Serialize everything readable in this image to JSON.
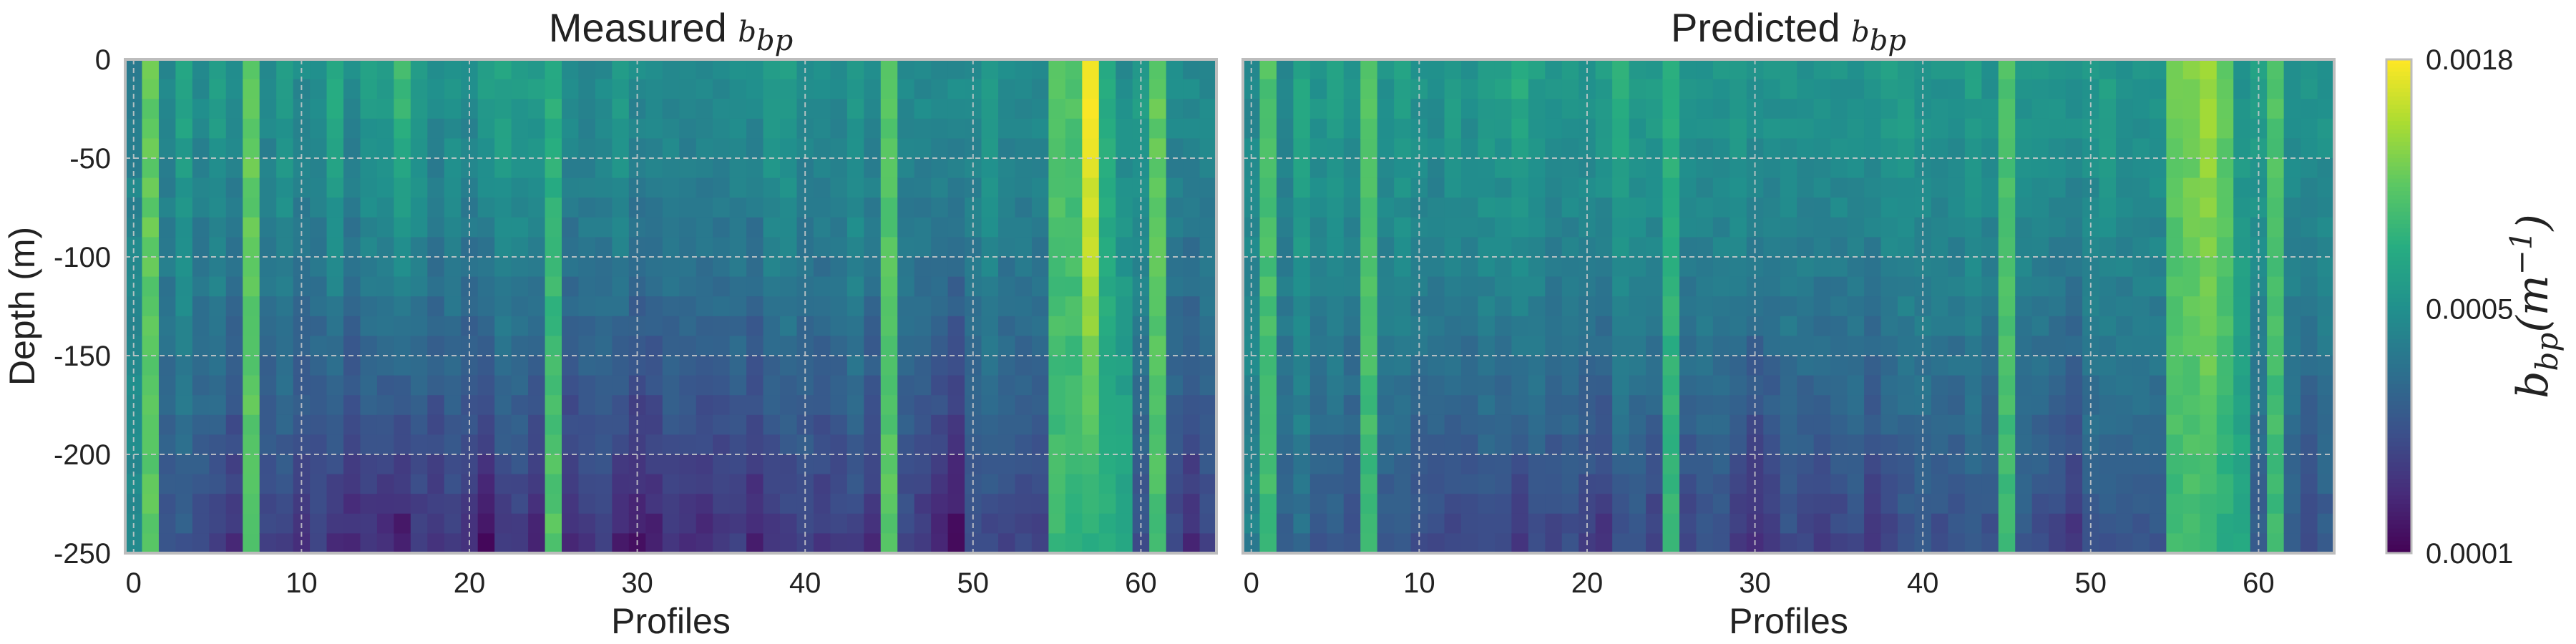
{
  "chart_data": {
    "type": "heatmap",
    "panels": [
      {
        "title": "Measured",
        "title_symbol": "b",
        "title_symbol_sub": "bp",
        "xlabel": "Profiles",
        "ylabel": "Depth (m)",
        "xlim": [
          -0.5,
          64.5
        ],
        "ylim": [
          -250,
          0
        ],
        "xticks": [
          "0",
          "10",
          "20",
          "30",
          "40",
          "50",
          "60"
        ],
        "yticks": [
          "0",
          "-50",
          "-100",
          "-150",
          "-200",
          "-250"
        ],
        "grid": true,
        "profiles": 65,
        "depth_bins": 25,
        "surface_values": [
          0.00036,
          0.0009,
          0.0004,
          0.00055,
          0.0004,
          0.0005,
          0.0004,
          0.0009,
          0.0004,
          0.0005,
          0.0004,
          0.0004,
          0.0006,
          0.0004,
          0.0005,
          0.0005,
          0.0007,
          0.0005,
          0.0004,
          0.00045,
          0.0004,
          0.0005,
          0.00055,
          0.0005,
          0.0005,
          0.0006,
          0.0004,
          0.0004,
          0.0004,
          0.0005,
          0.0004,
          0.0004,
          0.0004,
          0.0004,
          0.0004,
          0.0004,
          0.0004,
          0.0004,
          0.0005,
          0.0005,
          0.0004,
          0.0004,
          0.0004,
          0.0005,
          0.0004,
          0.0008,
          0.0004,
          0.0004,
          0.0004,
          0.0004,
          0.0004,
          0.0005,
          0.0004,
          0.0004,
          0.0004,
          0.0008,
          0.0008,
          0.0018,
          0.0006,
          0.0004,
          0.0005,
          0.0009,
          0.0004,
          0.0004,
          0.0004
        ],
        "bottom_values": [
          0.0004,
          0.00085,
          0.0002,
          0.00022,
          0.0002,
          0.00018,
          0.00015,
          0.00085,
          0.00018,
          0.00018,
          0.00016,
          0.00017,
          0.00015,
          0.00014,
          0.00015,
          0.00014,
          0.00012,
          0.00016,
          0.00015,
          0.00017,
          0.00015,
          0.00011,
          0.00016,
          0.00016,
          0.00013,
          0.00085,
          0.00014,
          0.00016,
          0.00017,
          0.00013,
          0.00012,
          0.00013,
          0.00016,
          0.00015,
          0.00014,
          0.00015,
          0.00017,
          0.00013,
          0.00015,
          0.00016,
          0.00018,
          0.00016,
          0.00017,
          0.00018,
          0.00015,
          0.00085,
          0.00018,
          0.00016,
          0.00014,
          0.00011,
          0.0002,
          0.00019,
          0.00018,
          0.00018,
          0.00018,
          0.0007,
          0.00065,
          0.0006,
          0.0006,
          0.0006,
          0.0002,
          0.00075,
          0.00018,
          0.00014,
          0.00018
        ]
      },
      {
        "title": "Predicted",
        "title_symbol": "b",
        "title_symbol_sub": "bp",
        "xlabel": "Profiles",
        "ylabel": "",
        "xlim": [
          -0.5,
          64.5
        ],
        "ylim": [
          -250,
          0
        ],
        "xticks": [
          "0",
          "10",
          "20",
          "30",
          "40",
          "50",
          "60"
        ],
        "yticks": [],
        "grid": true,
        "profiles": 65,
        "depth_bins": 25,
        "surface_values": [
          0.0004,
          0.0008,
          0.0004,
          0.00055,
          0.00045,
          0.0005,
          0.00045,
          0.0008,
          0.00045,
          0.0005,
          0.00045,
          0.00042,
          0.0005,
          0.00045,
          0.0005,
          0.0005,
          0.0006,
          0.0005,
          0.00045,
          0.00045,
          0.00045,
          0.0005,
          0.0006,
          0.0005,
          0.0005,
          0.0006,
          0.00045,
          0.00045,
          0.00045,
          0.0005,
          0.00045,
          0.00045,
          0.00045,
          0.00045,
          0.00045,
          0.00045,
          0.00045,
          0.00045,
          0.0005,
          0.0005,
          0.00045,
          0.00045,
          0.00045,
          0.0005,
          0.00045,
          0.0008,
          0.00045,
          0.00045,
          0.00045,
          0.00045,
          0.00045,
          0.0005,
          0.00045,
          0.00045,
          0.00045,
          0.0009,
          0.001,
          0.0012,
          0.0009,
          0.00045,
          0.0005,
          0.0008,
          0.00045,
          0.00045,
          0.00045
        ],
        "bottom_values": [
          0.00035,
          0.0007,
          0.00025,
          0.00028,
          0.00022,
          0.00022,
          0.0002,
          0.0007,
          0.00022,
          0.00022,
          0.0002,
          0.0002,
          0.00018,
          0.00018,
          0.0002,
          0.00018,
          0.00016,
          0.0002,
          0.00018,
          0.0002,
          0.00018,
          0.00015,
          0.0002,
          0.0002,
          0.00017,
          0.0007,
          0.00018,
          0.0002,
          0.0002,
          0.00016,
          0.00014,
          0.00016,
          0.0002,
          0.00018,
          0.00017,
          0.00018,
          0.0002,
          0.00016,
          0.00018,
          0.0002,
          0.00022,
          0.0002,
          0.0002,
          0.00022,
          0.0002,
          0.0007,
          0.00022,
          0.0002,
          0.00018,
          0.00015,
          0.00022,
          0.00022,
          0.00022,
          0.00022,
          0.00022,
          0.0007,
          0.0007,
          0.0007,
          0.0006,
          0.0006,
          0.00022,
          0.0007,
          0.00022,
          0.00018,
          0.00022
        ]
      }
    ],
    "colorbar": {
      "label_symbol": "b",
      "label_symbol_sub": "bp",
      "label_unit": "(m",
      "label_unit_exp": "−1",
      "label_close": ")",
      "scale": "log",
      "range": [
        0.0001,
        0.0018
      ],
      "ticks": [
        "0.0018",
        "0.0005",
        "0.0001"
      ],
      "colormap": "viridis"
    }
  }
}
